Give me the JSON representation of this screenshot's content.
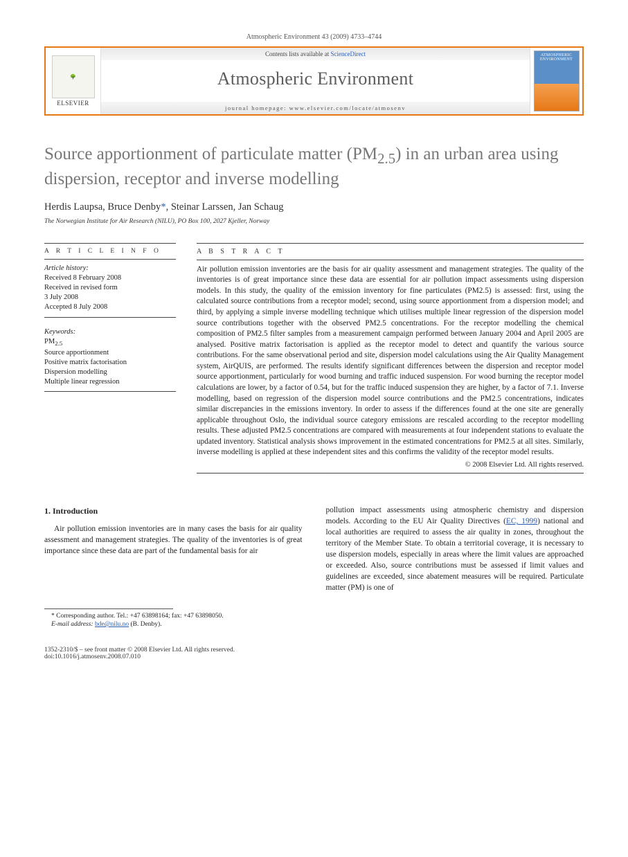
{
  "journal_ref": "Atmospheric Environment 43 (2009) 4733–4744",
  "banner": {
    "contents_text": "Contents lists available at ",
    "contents_link": "ScienceDirect",
    "journal_name": "Atmospheric Environment",
    "homepage_label": "journal homepage: www.elsevier.com/locate/atmosenv",
    "publisher": "ELSEVIER",
    "cover_title": "ATMOSPHERIC ENVIRONMENT"
  },
  "title_main": "Source apportionment of particulate matter (PM",
  "title_sub": "2.5",
  "title_tail": ") in an urban area using dispersion, receptor and inverse modelling",
  "authors_line": "Herdis Laupsa, Bruce Denby",
  "authors_corr_mark": "*",
  "authors_tail": ", Steinar Larssen, Jan Schaug",
  "affiliation": "The Norwegian Institute for Air Research (NILU), PO Box 100, 2027 Kjeller, Norway",
  "info": {
    "head": "A R T I C L E  I N F O",
    "history_head": "Article history:",
    "received": "Received 8 February 2008",
    "revised1": "Received in revised form",
    "revised2": "3 July 2008",
    "accepted": "Accepted 8 July 2008",
    "kw_head": "Keywords:",
    "kw": [
      "PM2.5",
      "Source apportionment",
      "Positive matrix factorisation",
      "Dispersion modelling",
      "Multiple linear regression"
    ]
  },
  "abstract": {
    "head": "A B S T R A C T",
    "text": "Air pollution emission inventories are the basis for air quality assessment and management strategies. The quality of the inventories is of great importance since these data are essential for air pollution impact assessments using dispersion models. In this study, the quality of the emission inventory for fine particulates (PM2.5) is assessed: first, using the calculated source contributions from a receptor model; second, using source apportionment from a dispersion model; and third, by applying a simple inverse modelling technique which utilises multiple linear regression of the dispersion model source contributions together with the observed PM2.5 concentrations. For the receptor modelling the chemical composition of PM2.5 filter samples from a measurement campaign performed between January 2004 and April 2005 are analysed. Positive matrix factorisation is applied as the receptor model to detect and quantify the various source contributions. For the same observational period and site, dispersion model calculations using the Air Quality Management system, AirQUIS, are performed. The results identify significant differences between the dispersion and receptor model source apportionment, particularly for wood burning and traffic induced suspension. For wood burning the receptor model calculations are lower, by a factor of 0.54, but for the traffic induced suspension they are higher, by a factor of 7.1. Inverse modelling, based on regression of the dispersion model source contributions and the PM2.5 concentrations, indicates similar discrepancies in the emissions inventory. In order to assess if the differences found at the one site are generally applicable throughout Oslo, the individual source category emissions are rescaled according to the receptor modelling results. These adjusted PM2.5 concentrations are compared with measurements at four independent stations to evaluate the updated inventory. Statistical analysis shows improvement in the estimated concentrations for PM2.5 at all sites. Similarly, inverse modelling is applied at these independent sites and this confirms the validity of the receptor model results.",
    "copyright": "© 2008 Elsevier Ltd. All rights reserved."
  },
  "section1": {
    "head": "1. Introduction",
    "col1": "Air pollution emission inventories are in many cases the basis for air quality assessment and management strategies. The quality of the inventories is of great importance since these data are part of the fundamental basis for air",
    "col2_a": "pollution impact assessments using atmospheric chemistry and dispersion models. According to the EU Air Quality Directives (",
    "col2_link": "EC, 1999",
    "col2_b": ") national and local authorities are required to assess the air quality in zones, throughout the territory of the Member State. To obtain a territorial coverage, it is necessary to use dispersion models, especially in areas where the limit values are approached or exceeded. Also, source contributions must be assessed if limit values and guidelines are exceeded, since abatement measures will be required. Particulate matter (PM) is one of"
  },
  "footnote": {
    "corr": "* Corresponding author. Tel.: +47 63898164; fax: +47 63898050.",
    "email_label": "E-mail address:",
    "email": "bde@nilu.no",
    "email_who": "(B. Denby)."
  },
  "footer": {
    "line1": "1352-2310/$ – see front matter © 2008 Elsevier Ltd. All rights reserved.",
    "line2": "doi:10.1016/j.atmosenv.2008.07.010"
  }
}
